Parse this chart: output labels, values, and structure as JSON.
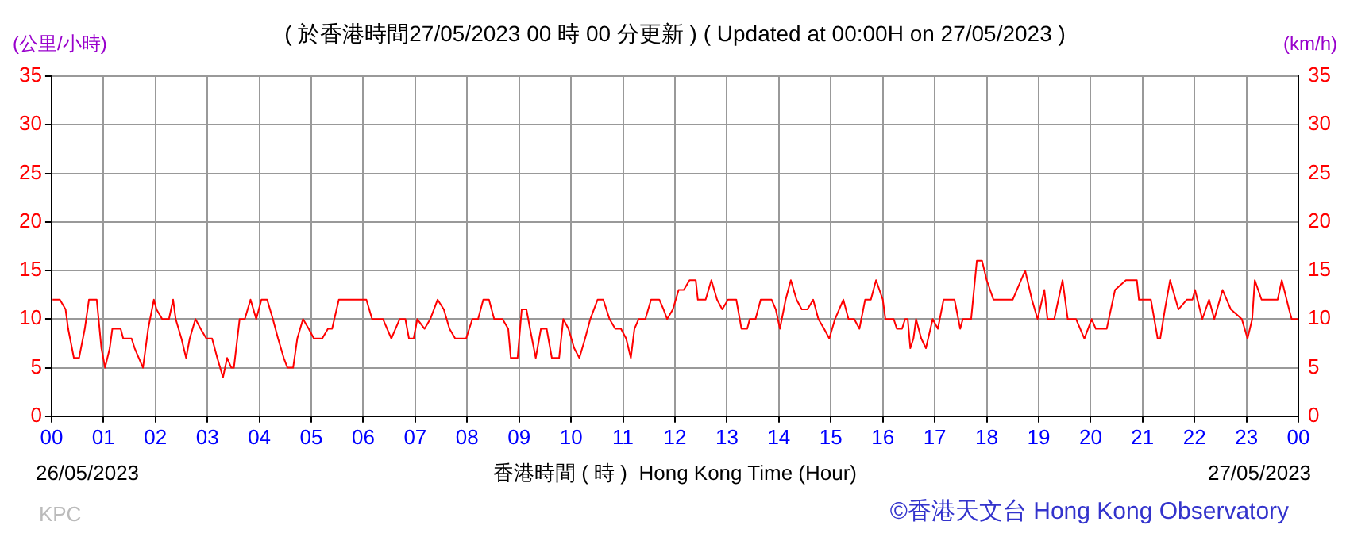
{
  "chart_data": {
    "type": "line",
    "title": "( 於香港時間27/05/2023 00 時 00 分更新 ) ( Updated at 00:00H on 27/05/2023 )",
    "xlabel": "香港時間 ( 時 )  Hong Kong Time (Hour)",
    "ylabel": "(公里/小時)",
    "y2label": "(km/h)",
    "annotations": [
      "26/05/2023",
      "27/05/2023",
      "KPC",
      "©香港天文台 Hong Kong Observatory"
    ],
    "series": [
      {
        "color": "#ff0000",
        "x": [
          0.02,
          0.16,
          0.27,
          0.32,
          0.43,
          0.53,
          0.64,
          0.72,
          0.87,
          0.96,
          1.03,
          1.12,
          1.17,
          1.33,
          1.38,
          1.54,
          1.6,
          1.76,
          1.86,
          1.97,
          2.02,
          2.13,
          2.26,
          2.34,
          2.39,
          2.5,
          2.59,
          2.66,
          2.77,
          2.87,
          2.98,
          3.09,
          3.19,
          3.3,
          3.38,
          3.46,
          3.51,
          3.62,
          3.72,
          3.83,
          3.94,
          4.04,
          4.15,
          4.26,
          4.36,
          4.47,
          4.54,
          4.65,
          4.73,
          4.84,
          4.95,
          5.05,
          5.21,
          5.32,
          5.4,
          5.53,
          6.06,
          6.17,
          6.38,
          6.54,
          6.7,
          6.81,
          6.88,
          6.97,
          7.04,
          7.18,
          7.29,
          7.43,
          7.55,
          7.66,
          7.77,
          7.98,
          8.1,
          8.21,
          8.31,
          8.42,
          8.52,
          8.68,
          8.79,
          8.84,
          8.97,
          9.05,
          9.14,
          9.21,
          9.32,
          9.42,
          9.53,
          9.63,
          9.77,
          9.85,
          9.95,
          10.06,
          10.16,
          10.27,
          10.37,
          10.51,
          10.62,
          10.74,
          10.85,
          10.96,
          11.06,
          11.15,
          11.22,
          11.3,
          11.43,
          11.54,
          11.7,
          11.78,
          11.85,
          11.96,
          12.07,
          12.17,
          12.28,
          12.4,
          12.44,
          12.59,
          12.7,
          12.81,
          12.91,
          13.02,
          13.18,
          13.28,
          13.39,
          13.44,
          13.55,
          13.65,
          13.86,
          13.94,
          14.02,
          14.13,
          14.23,
          14.34,
          14.44,
          14.55,
          14.66,
          14.76,
          14.87,
          14.97,
          15.08,
          15.24,
          15.34,
          15.45,
          15.55,
          15.66,
          15.77,
          15.87,
          16.0,
          16.05,
          16.21,
          16.27,
          16.37,
          16.43,
          16.48,
          16.53,
          16.59,
          16.64,
          16.74,
          16.83,
          16.96,
          17.06,
          17.17,
          17.38,
          17.49,
          17.54,
          17.7,
          17.81,
          17.91,
          18.0,
          18.13,
          18.5,
          18.66,
          18.74,
          18.87,
          18.98,
          19.11,
          19.17,
          19.3,
          19.46,
          19.56,
          19.72,
          19.88,
          20.02,
          20.1,
          20.31,
          20.47,
          20.68,
          20.89,
          20.93,
          21.16,
          21.29,
          21.34,
          21.43,
          21.53,
          21.69,
          21.85,
          21.96,
          22.01,
          22.15,
          22.28,
          22.38,
          22.54,
          22.7,
          22.91,
          23.02,
          23.11,
          23.16,
          23.29,
          23.45,
          23.6,
          23.68,
          23.82,
          23.87,
          24.0
        ],
        "values": [
          12,
          12,
          11,
          9,
          6,
          6,
          9,
          12,
          12,
          7,
          5,
          7,
          9,
          9,
          8,
          8,
          7,
          5,
          9,
          12,
          11,
          10,
          10,
          12,
          10,
          8,
          6,
          8,
          10,
          9,
          8,
          8,
          6,
          4,
          6,
          5,
          5,
          10,
          10,
          12,
          10,
          12,
          12,
          10,
          8,
          6,
          5,
          5,
          8,
          10,
          9,
          8,
          8,
          9,
          9,
          12,
          12,
          10,
          10,
          8,
          10,
          10,
          8,
          8,
          10,
          9,
          10,
          12,
          11,
          9,
          8,
          8,
          10,
          10,
          12,
          12,
          10,
          10,
          9,
          6,
          6,
          11,
          11,
          9,
          6,
          9,
          9,
          6,
          6,
          10,
          9,
          7,
          6,
          8,
          10,
          12,
          12,
          10,
          9,
          9,
          8,
          6,
          9,
          10,
          10,
          12,
          12,
          11,
          10,
          11,
          13,
          13,
          14,
          14,
          12,
          12,
          14,
          12,
          11,
          12,
          12,
          9,
          9,
          10,
          10,
          12,
          12,
          11,
          9,
          12,
          14,
          12,
          11,
          11,
          12,
          10,
          9,
          8,
          10,
          12,
          10,
          10,
          9,
          12,
          12,
          14,
          12,
          10,
          10,
          9,
          9,
          10,
          10,
          7,
          8,
          10,
          8,
          7,
          10,
          9,
          12,
          12,
          9,
          10,
          10,
          16,
          16,
          14,
          12,
          12,
          14,
          15,
          12,
          10,
          13,
          10,
          10,
          14,
          10,
          10,
          8,
          10,
          9,
          9,
          13,
          14,
          14,
          12,
          12,
          8,
          8,
          11,
          14,
          11,
          12,
          12,
          13,
          10,
          12,
          10,
          13,
          11,
          10,
          8,
          10,
          14,
          12,
          12,
          12,
          14,
          11,
          10,
          10
        ]
      }
    ],
    "xlim": [
      0,
      24
    ],
    "xticks": [
      {
        "value": 0,
        "label": "00"
      },
      {
        "value": 1,
        "label": "01"
      },
      {
        "value": 2,
        "label": "02"
      },
      {
        "value": 3,
        "label": "03"
      },
      {
        "value": 4,
        "label": "04"
      },
      {
        "value": 5,
        "label": "05"
      },
      {
        "value": 6,
        "label": "06"
      },
      {
        "value": 7,
        "label": "07"
      },
      {
        "value": 8,
        "label": "08"
      },
      {
        "value": 9,
        "label": "09"
      },
      {
        "value": 10,
        "label": "10"
      },
      {
        "value": 11,
        "label": "11"
      },
      {
        "value": 12,
        "label": "12"
      },
      {
        "value": 13,
        "label": "13"
      },
      {
        "value": 14,
        "label": "14"
      },
      {
        "value": 15,
        "label": "15"
      },
      {
        "value": 16,
        "label": "16"
      },
      {
        "value": 17,
        "label": "17"
      },
      {
        "value": 18,
        "label": "18"
      },
      {
        "value": 19,
        "label": "19"
      },
      {
        "value": 20,
        "label": "20"
      },
      {
        "value": 21,
        "label": "21"
      },
      {
        "value": 22,
        "label": "22"
      },
      {
        "value": 23,
        "label": "23"
      },
      {
        "value": 24,
        "label": "00"
      }
    ],
    "ylim": [
      0,
      35
    ],
    "yticks": [
      0,
      5,
      10,
      15,
      20,
      25,
      30,
      35
    ],
    "y2lim": [
      0,
      35
    ],
    "y2ticks": [
      0,
      5,
      10,
      15,
      20,
      25,
      30,
      35
    ],
    "grid": true,
    "legend": false,
    "marker": "none",
    "line_style": "solid"
  }
}
